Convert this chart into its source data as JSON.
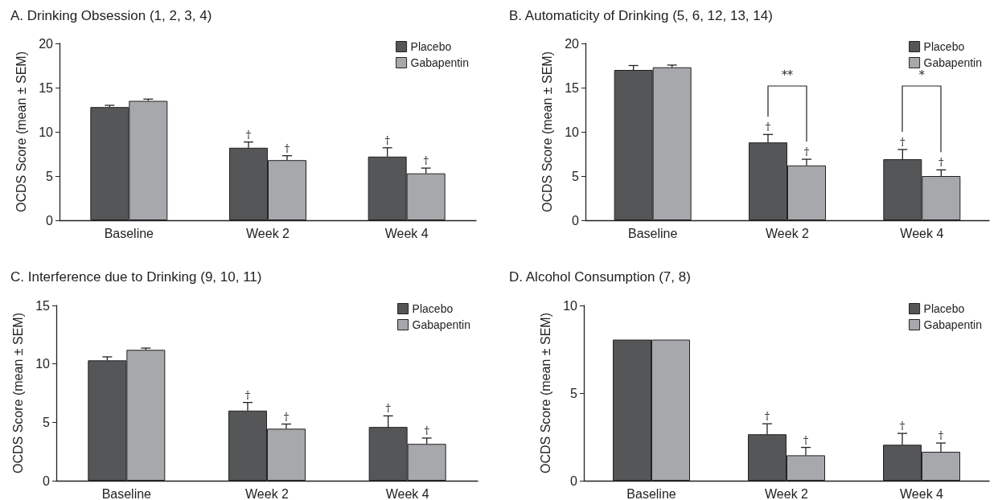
{
  "chart_data": [
    {
      "type": "bar",
      "title": "A. Drinking Obsession (1, 2, 3, 4)",
      "ylabel": "OCDS Score (mean ± SEM)",
      "categories": [
        "Baseline",
        "Week 2",
        "Week 4"
      ],
      "ylim": [
        0,
        20
      ],
      "yticks": [
        0,
        5,
        10,
        15,
        20
      ],
      "grid": false,
      "legend": "top right",
      "series": [
        {
          "name": "Placebo",
          "color": "#555658",
          "values": [
            12.8,
            8.2,
            7.2
          ],
          "errors": [
            0.2,
            0.65,
            1.0
          ],
          "value_labels": [
            null,
            "†",
            "†"
          ]
        },
        {
          "name": "Gabapentin",
          "color": "#a7a8ab",
          "values": [
            13.5,
            6.8,
            5.3
          ],
          "errors": [
            0.2,
            0.5,
            0.6
          ],
          "value_labels": [
            null,
            "†",
            "†"
          ]
        }
      ]
    },
    {
      "type": "bar",
      "title": "B. Automaticity of Drinking (5, 6, 12, 13, 14)",
      "ylabel": "OCDS Score (mean ± SEM)",
      "categories": [
        "Baseline",
        "Week 2",
        "Week 4"
      ],
      "ylim": [
        0,
        20
      ],
      "yticks": [
        0,
        5,
        10,
        15,
        20
      ],
      "grid": false,
      "legend": "top right",
      "annotations": [
        "**",
        "*"
      ],
      "series": [
        {
          "name": "Placebo",
          "color": "#555658",
          "values": [
            17.0,
            8.8,
            6.9
          ],
          "errors": [
            0.5,
            0.9,
            1.1
          ],
          "value_labels": [
            null,
            "†",
            "†"
          ]
        },
        {
          "name": "Gabapentin",
          "color": "#a7a8ab",
          "values": [
            17.3,
            6.2,
            5.0
          ],
          "errors": [
            0.25,
            0.7,
            0.7
          ],
          "value_labels": [
            null,
            "†",
            "†"
          ]
        }
      ]
    },
    {
      "type": "bar",
      "title": "C. Interference due to Drinking (9, 10, 11)",
      "ylabel": "OCDS Score (mean ± SEM)",
      "categories": [
        "Baseline",
        "Week 2",
        "Week 4"
      ],
      "ylim": [
        0,
        15
      ],
      "yticks": [
        0,
        5,
        10,
        15
      ],
      "grid": false,
      "legend": "top right",
      "series": [
        {
          "name": "Placebo",
          "color": "#555658",
          "values": [
            10.3,
            6.0,
            4.6
          ],
          "errors": [
            0.3,
            0.7,
            0.95
          ],
          "value_labels": [
            null,
            "†",
            "†"
          ]
        },
        {
          "name": "Gabapentin",
          "color": "#a7a8ab",
          "values": [
            11.2,
            4.45,
            3.15
          ],
          "errors": [
            0.15,
            0.4,
            0.5
          ],
          "value_labels": [
            null,
            "†",
            "†"
          ]
        }
      ]
    },
    {
      "type": "bar",
      "title": "D. Alcohol Consumption (7, 8)",
      "ylabel": "OCDS Score (mean ± SEM)",
      "categories": [
        "Baseline",
        "Week 2",
        "Week 4"
      ],
      "ylim": [
        0,
        10
      ],
      "yticks": [
        0,
        5,
        10
      ],
      "grid": false,
      "legend": "top right",
      "series": [
        {
          "name": "Placebo",
          "color": "#555658",
          "values": [
            8.05,
            2.65,
            2.05
          ],
          "errors": [
            null,
            0.6,
            0.65
          ],
          "value_labels": [
            null,
            "†",
            "†"
          ]
        },
        {
          "name": "Gabapentin",
          "color": "#a7a8ab",
          "values": [
            8.05,
            1.45,
            1.65
          ],
          "errors": [
            null,
            0.45,
            0.5
          ],
          "value_labels": [
            null,
            "†",
            "†"
          ]
        }
      ]
    }
  ]
}
